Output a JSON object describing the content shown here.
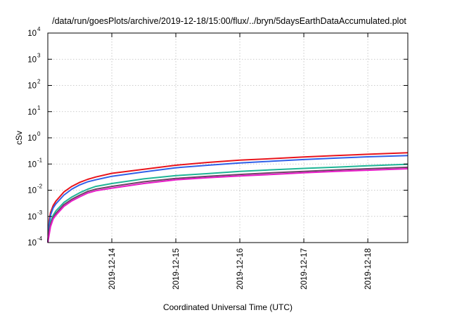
{
  "chart_data": {
    "type": "line",
    "title": "/data/run/goesPlots/archive/2019-12-18/15:00/flux/../bryn/5daysEarthDataAccumulated.plot",
    "xlabel": "Coordinated Universal Time (UTC)",
    "ylabel": "cSv",
    "yscale": "log",
    "ylim": [
      0.0001,
      10000
    ],
    "xlim": [
      "2019-12-13 00:00",
      "2019-12-18 15:00"
    ],
    "x_ticks": [
      "2019-12-14",
      "2019-12-15",
      "2019-12-16",
      "2019-12-17",
      "2019-12-18"
    ],
    "y_ticks": [
      {
        "base": "10",
        "exp": "-4"
      },
      {
        "base": "10",
        "exp": "-3"
      },
      {
        "base": "10",
        "exp": "-2"
      },
      {
        "base": "10",
        "exp": "-1"
      },
      {
        "base": "10",
        "exp": "0"
      },
      {
        "base": "10",
        "exp": "1"
      },
      {
        "base": "10",
        "exp": "2"
      },
      {
        "base": "10",
        "exp": "3"
      },
      {
        "base": "10",
        "exp": "4"
      }
    ],
    "grid": true,
    "x": [
      "2019-12-13 00:00",
      "2019-12-13 00:30",
      "2019-12-13 01:00",
      "2019-12-13 02:00",
      "2019-12-13 03:00",
      "2019-12-13 06:00",
      "2019-12-13 09:00",
      "2019-12-13 12:00",
      "2019-12-13 15:00",
      "2019-12-13 18:00",
      "2019-12-14 00:00",
      "2019-12-14 12:00",
      "2019-12-15 00:00",
      "2019-12-15 12:00",
      "2019-12-16 00:00",
      "2019-12-16 12:00",
      "2019-12-17 00:00",
      "2019-12-17 12:00",
      "2019-12-18 00:00",
      "2019-12-18 15:00"
    ],
    "series": [
      {
        "color": "#e8141c",
        "values": [
          0.0001,
          0.0007,
          0.0014,
          0.0026,
          0.0038,
          0.0085,
          0.014,
          0.02,
          0.026,
          0.032,
          0.044,
          0.063,
          0.09,
          0.115,
          0.14,
          0.16,
          0.185,
          0.21,
          0.235,
          0.27
        ]
      },
      {
        "color": "#3060e8",
        "values": [
          0.0001,
          0.0005,
          0.0011,
          0.0021,
          0.003,
          0.0065,
          0.011,
          0.016,
          0.021,
          0.025,
          0.034,
          0.05,
          0.072,
          0.09,
          0.11,
          0.128,
          0.148,
          0.168,
          0.188,
          0.21
        ]
      },
      {
        "color": "#1fb596",
        "values": [
          0.0001,
          0.0003,
          0.0006,
          0.0011,
          0.0016,
          0.0034,
          0.0055,
          0.008,
          0.011,
          0.014,
          0.018,
          0.027,
          0.036,
          0.043,
          0.052,
          0.06,
          0.068,
          0.076,
          0.086,
          0.098
        ]
      },
      {
        "color": "#6e4366",
        "values": [
          0.0001,
          0.0003,
          0.0005,
          0.0009,
          0.0013,
          0.0028,
          0.0045,
          0.0065,
          0.009,
          0.011,
          0.014,
          0.021,
          0.028,
          0.034,
          0.04,
          0.046,
          0.052,
          0.059,
          0.066,
          0.075
        ]
      },
      {
        "color": "#e81cc8",
        "values": [
          0.0001,
          0.0002,
          0.0004,
          0.0008,
          0.0011,
          0.0024,
          0.0039,
          0.0056,
          0.0078,
          0.0095,
          0.012,
          0.018,
          0.025,
          0.03,
          0.035,
          0.04,
          0.046,
          0.052,
          0.058,
          0.066
        ]
      }
    ]
  }
}
